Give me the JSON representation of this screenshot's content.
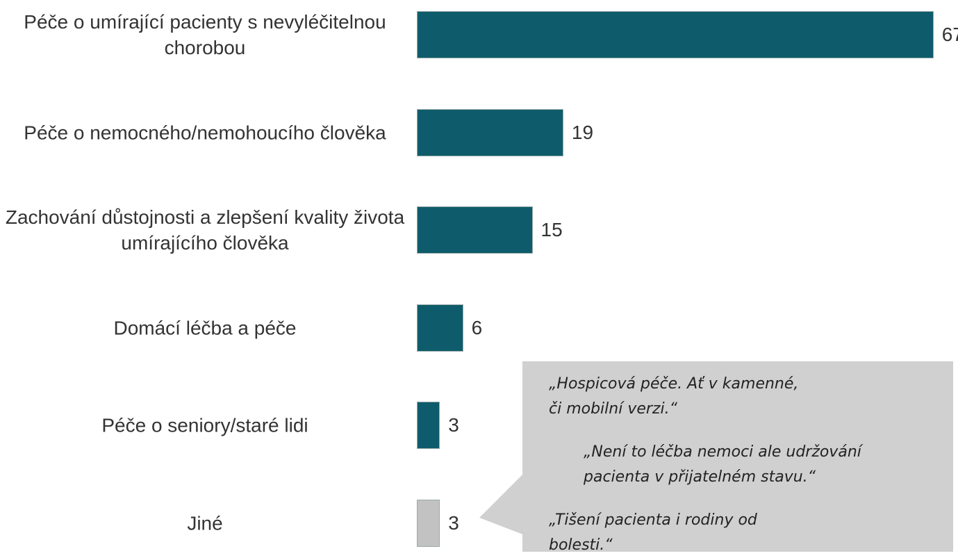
{
  "chart_data": {
    "type": "bar",
    "categories": [
      "Péče o umírající pacienty s nevyléčitelnou chorobou",
      "Péče o nemocného/nemohoucího člověka",
      "Zachování důstojnosti a zlepšení kvality života umírajícího člověka",
      "Domácí léčba a péče",
      "Péče o seniory/staré lidi",
      "Jiné"
    ],
    "values": [
      67,
      19,
      15,
      6,
      3,
      3
    ],
    "colors": [
      "#0e5c6b",
      "#0e5c6b",
      "#0e5c6b",
      "#0e5c6b",
      "#0e5c6b",
      "#c2c2c2"
    ],
    "annotations": [
      [
        "„Hospicová péče. Ať v kamenné,",
        "či mobilní verzi.“"
      ],
      [
        "„Není to léčba nemoci ale udržování",
        "pacienta v přijatelném stavu.“"
      ],
      [
        "„Tišení pacienta i rodiny od",
        "bolesti.“"
      ]
    ]
  }
}
